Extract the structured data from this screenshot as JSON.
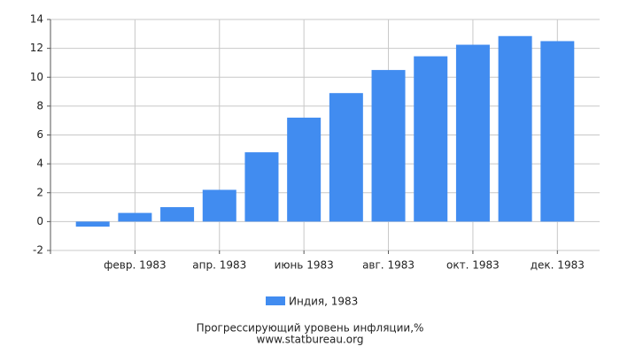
{
  "chart_data": {
    "type": "bar",
    "title": "Прогрессирующий уровень инфляции,%",
    "source": "www.statbureau.org",
    "categories": [
      null,
      "февр. 1983",
      null,
      "апр. 1983",
      null,
      "июнь 1983",
      null,
      "авг. 1983",
      null,
      "окт. 1983",
      null,
      "дек. 1983"
    ],
    "series": [
      {
        "name": "Индия, 1983",
        "color": "#418cf0",
        "values": [
          -0.35,
          0.6,
          1.0,
          2.2,
          4.8,
          7.2,
          8.9,
          10.5,
          11.45,
          12.25,
          12.85,
          12.5
        ]
      }
    ],
    "ylim": [
      -2,
      14
    ],
    "yticks": [
      -2,
      0,
      2,
      4,
      6,
      8,
      10,
      12,
      14
    ],
    "grid": true,
    "legend": "bottom"
  }
}
